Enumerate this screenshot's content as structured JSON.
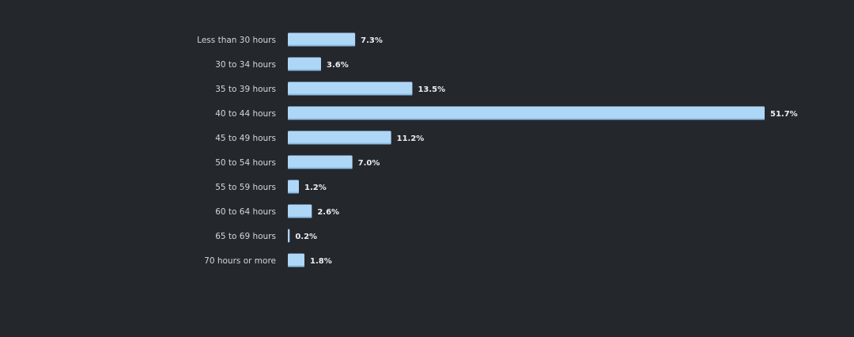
{
  "chart_data": {
    "type": "bar",
    "orientation": "horizontal",
    "title": "",
    "xlabel": "",
    "ylabel": "",
    "categories": [
      "Less than 30 hours",
      "30 to 34 hours",
      "35 to 39 hours",
      "40 to 44 hours",
      "45 to 49 hours",
      "50 to 54 hours",
      "55 to 59 hours",
      "60 to 64 hours",
      "65 to 69 hours",
      "70 hours or more"
    ],
    "values": [
      7.3,
      3.6,
      13.5,
      51.7,
      11.2,
      7.0,
      1.2,
      2.6,
      0.2,
      1.8
    ],
    "value_labels": [
      "7.3%",
      "3.6%",
      "13.5%",
      "51.7%",
      "11.2%",
      "7.0%",
      "1.2%",
      "2.6%",
      "0.2%",
      "1.8%"
    ],
    "unit": "%",
    "xlim": [
      0,
      51.7
    ],
    "grid": false,
    "legend": "none",
    "colors": {
      "background": "#24272c",
      "bar": "#aed6f7",
      "bar_edge": "#7fb3dd",
      "category_text": "#d4d6da",
      "value_text": "#eceef1"
    }
  }
}
